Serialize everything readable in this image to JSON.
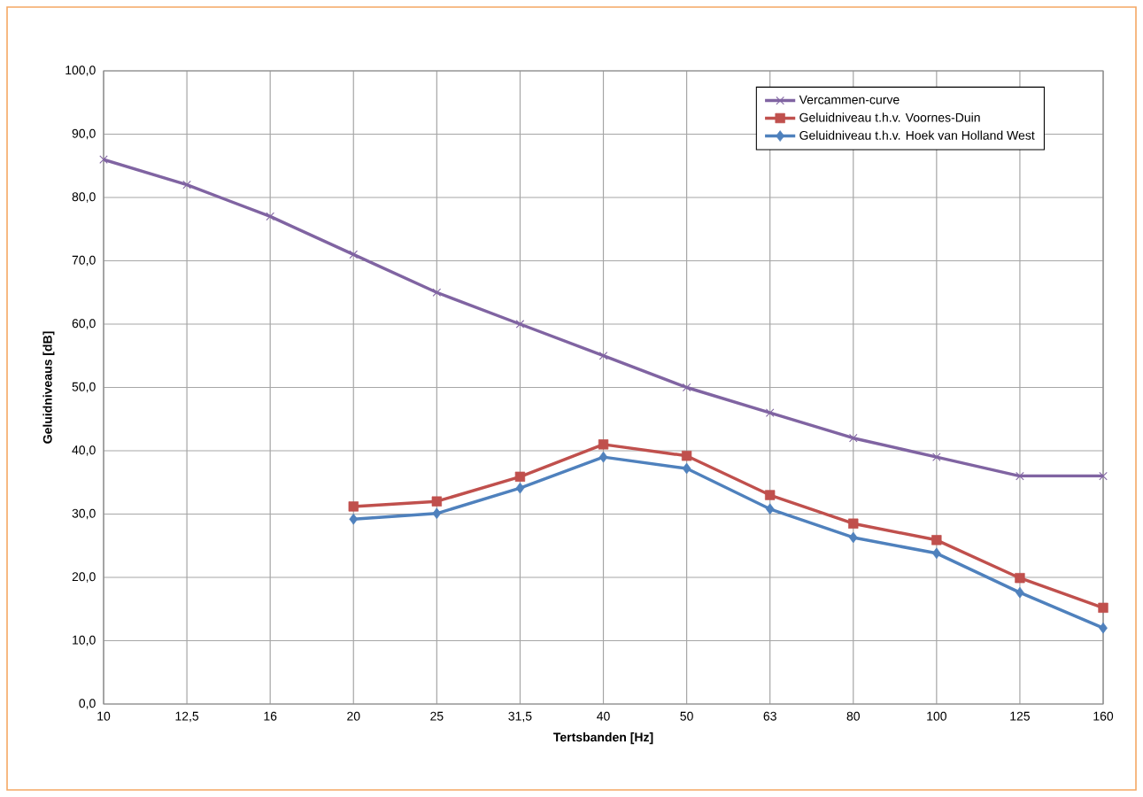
{
  "chart_data": {
    "type": "line",
    "xlabel": "Tertsbanden [Hz]",
    "ylabel": "Geluidniveaus [dB]",
    "categories": [
      "10",
      "12,5",
      "16",
      "20",
      "25",
      "31,5",
      "40",
      "50",
      "63",
      "80",
      "100",
      "125",
      "160"
    ],
    "series": [
      {
        "name": "Vercammen-curve",
        "color": "#8064a2",
        "marker": "cross",
        "values": [
          86,
          82,
          77,
          71,
          65,
          60,
          55,
          50,
          46,
          42,
          39,
          36,
          36
        ]
      },
      {
        "name": "Geluidniveau t.h.v. Voornes-Duin",
        "color": "#c0504d",
        "marker": "square",
        "values": [
          null,
          null,
          null,
          31.2,
          32.0,
          35.9,
          41.0,
          39.2,
          33.0,
          28.5,
          25.9,
          19.9,
          15.2
        ]
      },
      {
        "name": "Geluidniveau t.h.v. Hoek van Holland West",
        "color": "#4f81bd",
        "marker": "diamond",
        "values": [
          null,
          null,
          null,
          29.2,
          30.1,
          34.1,
          39.0,
          37.2,
          30.8,
          26.3,
          23.8,
          17.6,
          12.0
        ]
      }
    ],
    "ylim": [
      0,
      100
    ],
    "yticks": [
      {
        "value": 0,
        "label": "0,0"
      },
      {
        "value": 10,
        "label": "10,0"
      },
      {
        "value": 20,
        "label": "20,0"
      },
      {
        "value": 30,
        "label": "30,0"
      },
      {
        "value": 40,
        "label": "40,0"
      },
      {
        "value": 50,
        "label": "50,0"
      },
      {
        "value": 60,
        "label": "60,0"
      },
      {
        "value": 70,
        "label": "70,0"
      },
      {
        "value": 80,
        "label": "80,0"
      },
      {
        "value": 90,
        "label": "90,0"
      },
      {
        "value": 100,
        "label": "100,0"
      }
    ],
    "grid": true,
    "legend": "top right",
    "line_style": "solid"
  }
}
